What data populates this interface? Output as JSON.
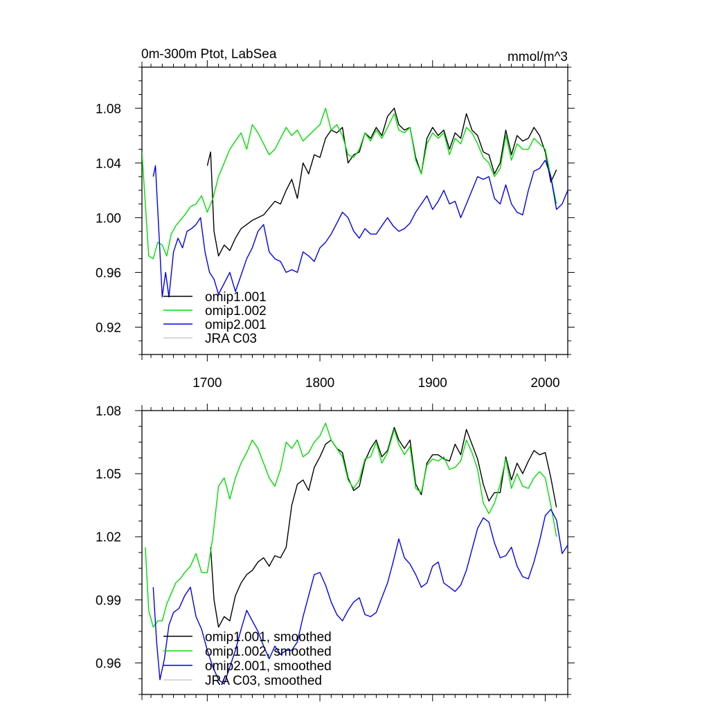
{
  "chart_data": [
    {
      "type": "line",
      "title": "0m-300m Ptot, LabSea",
      "units": "mmol/m^3",
      "xlim": [
        1642,
        2020
      ],
      "ylim": [
        0.9,
        1.11
      ],
      "xticks": [
        1700,
        1800,
        1900,
        2000
      ],
      "xtick_labels": [
        "1700",
        "1800",
        "1900",
        "2000"
      ],
      "yticks": [
        0.92,
        0.96,
        1.0,
        1.04,
        1.08
      ],
      "ytick_labels": [
        "0.92",
        "0.96",
        "1.00",
        "1.04",
        "1.08"
      ],
      "legend_position": "bottom-left",
      "series": [
        {
          "name": "omip1.001",
          "color": "#000000",
          "x": [
            1700,
            1703,
            1706,
            1710,
            1715,
            1720,
            1725,
            1730,
            1740,
            1750,
            1760,
            1765,
            1770,
            1775,
            1780,
            1785,
            1790,
            1795,
            1800,
            1805,
            1810,
            1815,
            1820,
            1825,
            1830,
            1835,
            1840,
            1845,
            1850,
            1855,
            1860,
            1866,
            1870,
            1875,
            1880,
            1885,
            1890,
            1895,
            1900,
            1905,
            1910,
            1915,
            1920,
            1925,
            1930,
            1935,
            1940,
            1945,
            1950,
            1955,
            1960,
            1965,
            1970,
            1975,
            1980,
            1985,
            1990,
            1995,
            2000,
            2005,
            2010
          ],
          "y": [
            1.038,
            1.048,
            0.99,
            0.972,
            0.98,
            0.976,
            0.985,
            0.992,
            0.998,
            1.002,
            1.012,
            1.01,
            1.02,
            1.028,
            1.014,
            1.04,
            1.032,
            1.046,
            1.044,
            1.058,
            1.064,
            1.062,
            1.066,
            1.04,
            1.046,
            1.048,
            1.062,
            1.058,
            1.066,
            1.06,
            1.074,
            1.08,
            1.068,
            1.064,
            1.066,
            1.044,
            1.032,
            1.058,
            1.066,
            1.06,
            1.064,
            1.05,
            1.062,
            1.058,
            1.076,
            1.064,
            1.06,
            1.048,
            1.046,
            1.032,
            1.04,
            1.064,
            1.046,
            1.06,
            1.056,
            1.058,
            1.066,
            1.06,
            1.048,
            1.026,
            1.035
          ]
        },
        {
          "name": "omip1.002",
          "color": "#00dd00",
          "x": [
            1642,
            1645,
            1648,
            1652,
            1656,
            1660,
            1664,
            1668,
            1672,
            1676,
            1680,
            1685,
            1690,
            1695,
            1700,
            1705,
            1710,
            1715,
            1720,
            1725,
            1730,
            1735,
            1740,
            1745,
            1750,
            1755,
            1760,
            1765,
            1770,
            1775,
            1780,
            1785,
            1790,
            1795,
            1800,
            1805,
            1810,
            1815,
            1820,
            1825,
            1830,
            1835,
            1840,
            1845,
            1850,
            1855,
            1860,
            1866,
            1870,
            1875,
            1880,
            1885,
            1890,
            1895,
            1900,
            1905,
            1910,
            1915,
            1920,
            1925,
            1930,
            1935,
            1940,
            1945,
            1950,
            1955,
            1960,
            1965,
            1970,
            1975,
            1980,
            1985,
            1990,
            1995,
            2000,
            2005,
            2010
          ],
          "y": [
            1.048,
            1.01,
            0.972,
            0.97,
            0.982,
            0.98,
            0.972,
            0.988,
            0.994,
            0.998,
            1.002,
            1.008,
            1.01,
            1.016,
            1.004,
            1.014,
            1.03,
            1.04,
            1.05,
            1.056,
            1.062,
            1.05,
            1.068,
            1.062,
            1.054,
            1.046,
            1.05,
            1.058,
            1.066,
            1.06,
            1.064,
            1.056,
            1.06,
            1.064,
            1.068,
            1.08,
            1.064,
            1.068,
            1.06,
            1.046,
            1.044,
            1.05,
            1.062,
            1.056,
            1.064,
            1.058,
            1.066,
            1.076,
            1.064,
            1.062,
            1.066,
            1.042,
            1.032,
            1.054,
            1.062,
            1.058,
            1.062,
            1.046,
            1.058,
            1.054,
            1.066,
            1.062,
            1.054,
            1.044,
            1.04,
            1.03,
            1.036,
            1.06,
            1.042,
            1.054,
            1.05,
            1.05,
            1.058,
            1.054,
            1.05,
            1.03,
            1.01
          ]
        },
        {
          "name": "omip2.001",
          "color": "#0000ee",
          "x": [
            1652,
            1654,
            1658,
            1660,
            1663,
            1666,
            1670,
            1674,
            1678,
            1682,
            1686,
            1690,
            1694,
            1698,
            1702,
            1706,
            1710,
            1715,
            1720,
            1725,
            1730,
            1735,
            1740,
            1745,
            1750,
            1755,
            1760,
            1765,
            1770,
            1775,
            1780,
            1785,
            1790,
            1795,
            1800,
            1805,
            1810,
            1815,
            1820,
            1825,
            1830,
            1835,
            1840,
            1845,
            1850,
            1855,
            1860,
            1865,
            1870,
            1875,
            1880,
            1885,
            1890,
            1895,
            1900,
            1905,
            1910,
            1915,
            1920,
            1925,
            1930,
            1935,
            1940,
            1945,
            1950,
            1955,
            1960,
            1965,
            1970,
            1975,
            1980,
            1985,
            1990,
            1995,
            2000,
            2005,
            2010,
            2015,
            2020
          ],
          "y": [
            1.03,
            1.038,
            0.975,
            0.942,
            0.96,
            0.942,
            0.975,
            0.985,
            0.978,
            0.99,
            0.992,
            0.995,
            1.0,
            0.975,
            0.96,
            0.955,
            0.944,
            0.952,
            0.96,
            0.946,
            0.958,
            0.97,
            0.978,
            0.99,
            0.995,
            0.975,
            0.97,
            0.968,
            0.96,
            0.962,
            0.96,
            0.975,
            0.972,
            0.968,
            0.978,
            0.982,
            0.988,
            0.996,
            1.004,
            1.0,
            0.99,
            0.985,
            0.992,
            0.988,
            0.988,
            0.994,
            1.0,
            0.994,
            0.99,
            0.992,
            0.996,
            1.004,
            1.01,
            1.016,
            1.006,
            1.012,
            1.02,
            1.01,
            1.012,
            1.0,
            1.01,
            1.02,
            1.03,
            1.028,
            1.03,
            1.014,
            1.01,
            1.024,
            1.01,
            1.004,
            1.002,
            1.02,
            1.034,
            1.036,
            1.042,
            1.03,
            1.006,
            1.01,
            1.02
          ]
        },
        {
          "name": "JRA C03",
          "color": "#cccccc",
          "x": [],
          "y": []
        }
      ]
    },
    {
      "type": "line",
      "title": "",
      "xlim": [
        1642,
        2020
      ],
      "ylim": [
        0.945,
        1.08
      ],
      "xticks": [
        1700,
        1800,
        1900,
        2000
      ],
      "yticks": [
        0.96,
        0.99,
        1.02,
        1.05,
        1.08
      ],
      "ytick_labels": [
        "0.96",
        "0.99",
        "1.02",
        "1.05",
        "1.08"
      ],
      "legend_position": "bottom-left",
      "series": [
        {
          "name": "omip1.001, smoothed",
          "color": "#000000",
          "x": [
            1703,
            1706,
            1710,
            1715,
            1720,
            1725,
            1730,
            1735,
            1740,
            1745,
            1750,
            1755,
            1760,
            1765,
            1770,
            1775,
            1780,
            1785,
            1790,
            1795,
            1800,
            1805,
            1810,
            1815,
            1820,
            1825,
            1830,
            1835,
            1840,
            1845,
            1850,
            1855,
            1860,
            1866,
            1870,
            1875,
            1880,
            1885,
            1890,
            1895,
            1900,
            1905,
            1910,
            1915,
            1920,
            1925,
            1930,
            1935,
            1940,
            1945,
            1950,
            1955,
            1960,
            1965,
            1970,
            1975,
            1980,
            1985,
            1990,
            1995,
            2000,
            2005,
            2010
          ],
          "y": [
            1.015,
            0.99,
            0.977,
            0.982,
            0.98,
            0.992,
            0.998,
            1.002,
            1.004,
            1.008,
            1.01,
            1.006,
            1.011,
            1.01,
            1.015,
            1.035,
            1.045,
            1.047,
            1.042,
            1.053,
            1.058,
            1.064,
            1.066,
            1.062,
            1.06,
            1.048,
            1.042,
            1.044,
            1.056,
            1.062,
            1.066,
            1.058,
            1.061,
            1.072,
            1.066,
            1.062,
            1.066,
            1.045,
            1.04,
            1.055,
            1.059,
            1.059,
            1.057,
            1.056,
            1.064,
            1.059,
            1.071,
            1.064,
            1.057,
            1.045,
            1.037,
            1.041,
            1.041,
            1.058,
            1.047,
            1.055,
            1.05,
            1.056,
            1.061,
            1.059,
            1.06,
            1.048,
            1.034
          ]
        },
        {
          "name": "omip1.002, smoothed",
          "color": "#00dd00",
          "x": [
            1645,
            1648,
            1652,
            1656,
            1660,
            1664,
            1668,
            1672,
            1676,
            1680,
            1685,
            1690,
            1695,
            1700,
            1705,
            1710,
            1715,
            1720,
            1725,
            1730,
            1735,
            1740,
            1745,
            1750,
            1755,
            1760,
            1765,
            1770,
            1775,
            1780,
            1785,
            1790,
            1795,
            1800,
            1805,
            1810,
            1815,
            1820,
            1825,
            1830,
            1835,
            1840,
            1845,
            1850,
            1855,
            1860,
            1866,
            1870,
            1875,
            1880,
            1885,
            1890,
            1895,
            1900,
            1905,
            1910,
            1915,
            1920,
            1925,
            1930,
            1935,
            1940,
            1945,
            1950,
            1955,
            1960,
            1965,
            1970,
            1975,
            1980,
            1985,
            1990,
            1995,
            2000,
            2005,
            2010
          ],
          "y": [
            1.015,
            0.985,
            0.977,
            0.98,
            0.98,
            0.988,
            0.993,
            0.998,
            1.0,
            1.003,
            1.006,
            1.012,
            1.003,
            1.003,
            1.02,
            1.044,
            1.048,
            1.038,
            1.048,
            1.055,
            1.06,
            1.066,
            1.062,
            1.055,
            1.048,
            1.044,
            1.052,
            1.065,
            1.062,
            1.066,
            1.058,
            1.06,
            1.065,
            1.068,
            1.074,
            1.066,
            1.062,
            1.058,
            1.047,
            1.043,
            1.047,
            1.057,
            1.058,
            1.065,
            1.055,
            1.06,
            1.071,
            1.064,
            1.059,
            1.063,
            1.043,
            1.041,
            1.054,
            1.057,
            1.056,
            1.058,
            1.052,
            1.053,
            1.056,
            1.066,
            1.06,
            1.052,
            1.036,
            1.031,
            1.036,
            1.045,
            1.057,
            1.043,
            1.05,
            1.044,
            1.043,
            1.048,
            1.051,
            1.048,
            1.035,
            1.02
          ]
        },
        {
          "name": "omip2.001, smoothed",
          "color": "#0000ee",
          "x": [
            1652,
            1655,
            1658,
            1662,
            1666,
            1670,
            1675,
            1680,
            1685,
            1690,
            1695,
            1700,
            1705,
            1710,
            1715,
            1720,
            1725,
            1730,
            1735,
            1740,
            1745,
            1750,
            1755,
            1760,
            1765,
            1770,
            1775,
            1780,
            1785,
            1790,
            1795,
            1800,
            1805,
            1810,
            1815,
            1820,
            1825,
            1830,
            1835,
            1840,
            1845,
            1850,
            1855,
            1860,
            1865,
            1870,
            1875,
            1880,
            1885,
            1890,
            1895,
            1900,
            1905,
            1910,
            1915,
            1920,
            1925,
            1930,
            1935,
            1940,
            1945,
            1950,
            1955,
            1960,
            1965,
            1970,
            1975,
            1980,
            1985,
            1990,
            1995,
            2000,
            2005,
            2010,
            2015,
            2020
          ],
          "y": [
            0.996,
            0.97,
            0.952,
            0.962,
            0.978,
            0.984,
            0.986,
            0.992,
            0.996,
            0.982,
            0.976,
            0.966,
            0.958,
            0.952,
            0.95,
            0.958,
            0.966,
            0.976,
            0.985,
            0.98,
            0.975,
            0.968,
            0.962,
            0.968,
            0.964,
            0.966,
            0.966,
            0.97,
            0.982,
            0.992,
            1.002,
            1.003,
            0.997,
            0.989,
            0.983,
            0.98,
            0.985,
            0.989,
            0.991,
            0.983,
            0.982,
            0.984,
            0.991,
            0.998,
            1.008,
            1.019,
            1.01,
            1.007,
            1.002,
            0.996,
            0.998,
            1.006,
            1.008,
            0.998,
            0.996,
            0.994,
            0.997,
            1.004,
            1.014,
            1.024,
            1.029,
            1.027,
            1.017,
            1.01,
            1.011,
            1.015,
            1.006,
            1.001,
            1.0,
            1.008,
            1.018,
            1.03,
            1.033,
            1.028,
            1.012,
            1.016
          ]
        },
        {
          "name": "JRA C03, smoothed",
          "color": "#cccccc",
          "x": [],
          "y": []
        }
      ]
    }
  ]
}
